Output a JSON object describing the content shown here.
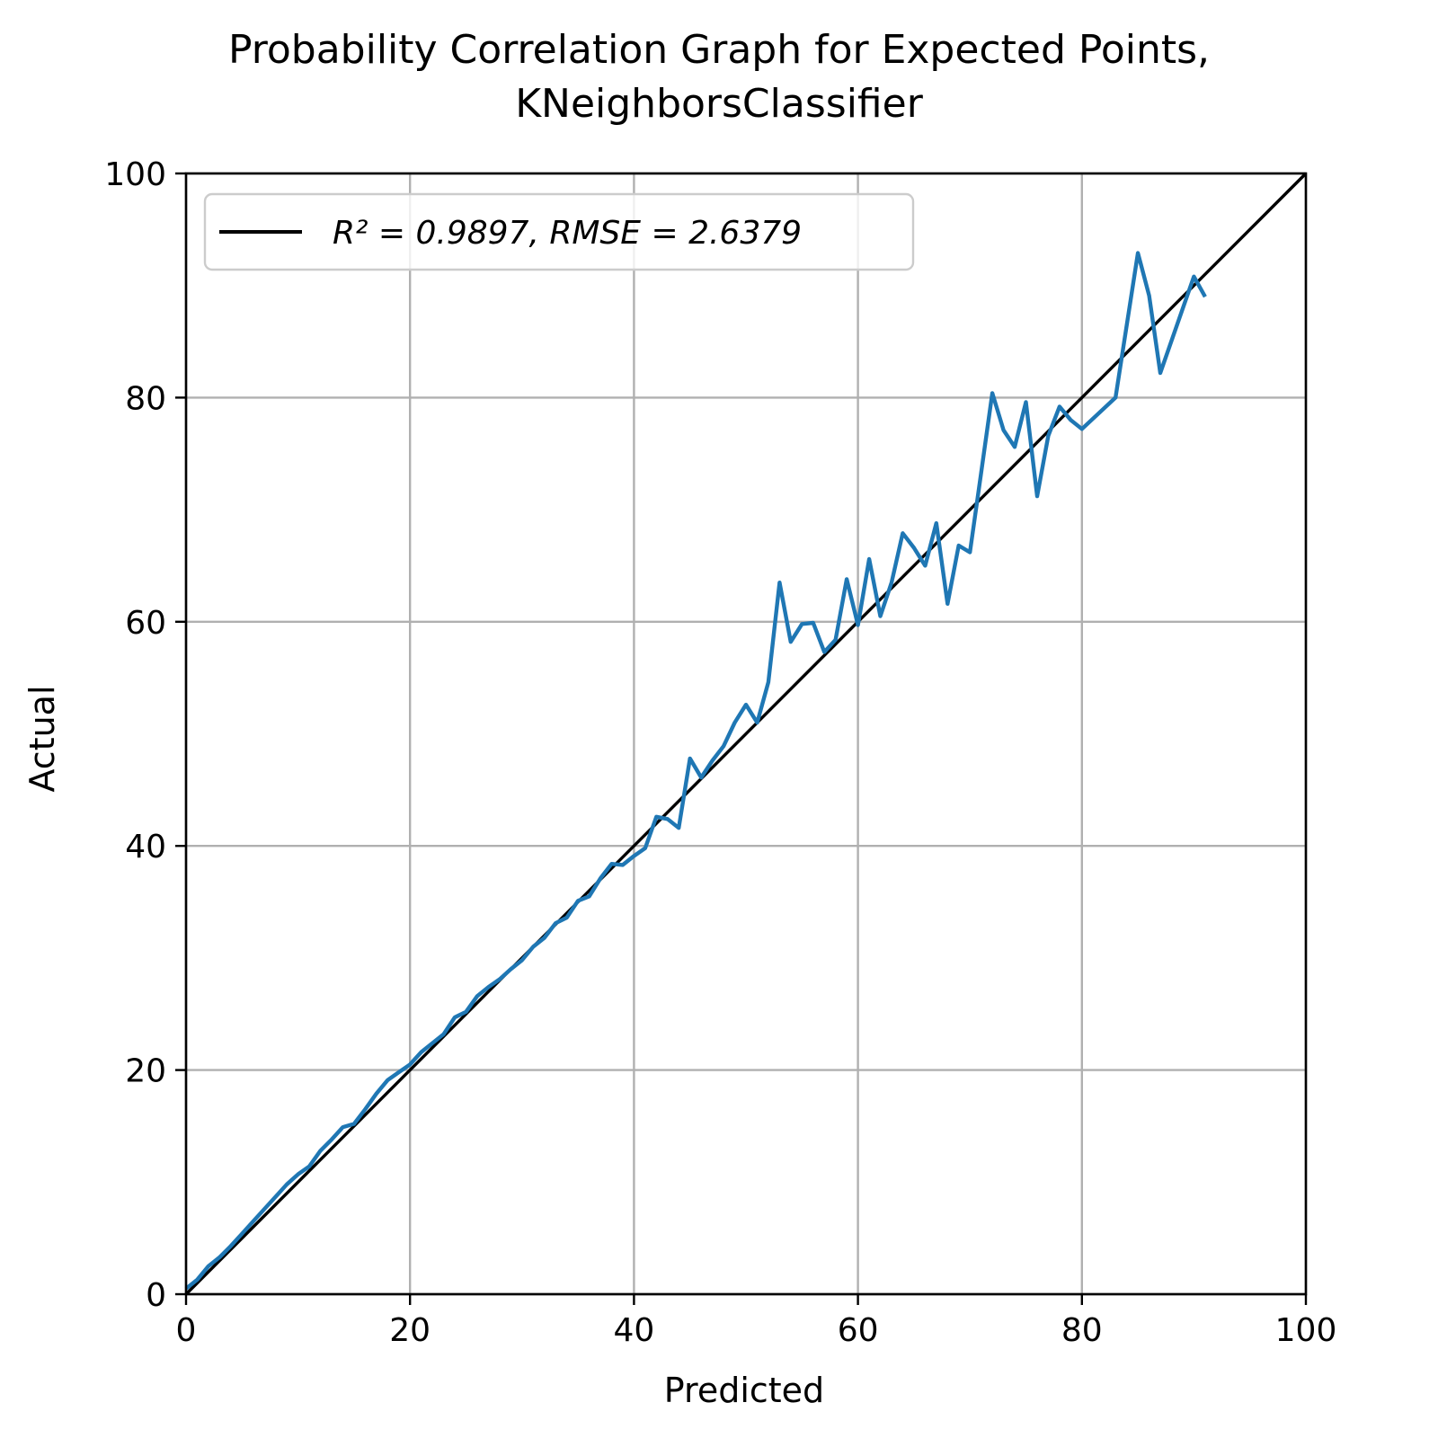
{
  "chart_data": {
    "type": "line",
    "title": "Probability Correlation Graph for Expected Points,",
    "subtitle": "KNeighborsClassifier",
    "xlabel": "Predicted",
    "ylabel": "Actual",
    "xlim": [
      0,
      100
    ],
    "ylim": [
      0,
      100
    ],
    "xticks": [
      "0",
      "20",
      "40",
      "60",
      "80",
      "100"
    ],
    "yticks": [
      "0",
      "20",
      "40",
      "60",
      "80",
      "100"
    ],
    "grid": true,
    "legend": {
      "placement": "upper-left",
      "entries": [
        {
          "label": "R² = 0.9897, RMSE = 2.6379",
          "color": "#000000"
        }
      ]
    },
    "series": [
      {
        "label": "R² = 0.9897, RMSE = 2.6379",
        "color": "#000000",
        "x": [
          0,
          100
        ],
        "y": [
          0,
          100
        ]
      },
      {
        "color": "#1f77b4",
        "x": [
          0,
          1,
          2,
          3,
          4,
          5,
          6,
          7,
          8,
          9,
          10,
          11,
          12,
          13,
          14,
          15,
          16,
          17,
          18,
          19,
          20,
          21,
          22,
          23,
          24,
          25,
          26,
          27,
          28,
          29,
          30,
          31,
          32,
          33,
          34,
          35,
          36,
          37,
          38,
          39,
          40,
          41,
          42,
          43,
          44,
          45,
          46,
          47,
          48,
          49,
          50,
          51,
          52,
          53,
          54,
          55,
          56,
          57,
          58,
          59,
          60,
          61,
          62,
          63,
          64,
          65,
          66,
          67,
          68,
          69,
          70,
          71,
          72,
          73,
          74,
          75,
          76,
          77,
          78,
          79,
          80,
          83,
          85,
          86,
          87,
          90,
          91
        ],
        "y": [
          0.5,
          1.3,
          2.5,
          3.3,
          4.3,
          5.4,
          6.5,
          7.6,
          8.7,
          9.8,
          10.7,
          11.4,
          12.8,
          13.8,
          14.9,
          15.2,
          16.5,
          17.9,
          19.1,
          19.8,
          20.5,
          21.6,
          22.4,
          23.2,
          24.7,
          25.2,
          26.6,
          27.4,
          28.1,
          29.0,
          29.8,
          31.0,
          31.8,
          33.1,
          33.6,
          35.1,
          35.5,
          37.1,
          38.4,
          38.3,
          39.1,
          39.8,
          42.6,
          42.4,
          41.6,
          47.8,
          46.1,
          47.6,
          48.9,
          51.0,
          52.6,
          51.0,
          54.6,
          63.5,
          58.2,
          59.8,
          59.9,
          57.3,
          58.4,
          63.8,
          59.7,
          65.6,
          60.5,
          63.5,
          67.9,
          66.6,
          65.0,
          68.8,
          61.6,
          66.8,
          66.2,
          73.3,
          80.4,
          77.1,
          75.6,
          79.6,
          71.2,
          76.6,
          79.2,
          78.0,
          77.2,
          80.0,
          92.9,
          89.1,
          82.2,
          90.8,
          89.0
        ]
      }
    ]
  }
}
